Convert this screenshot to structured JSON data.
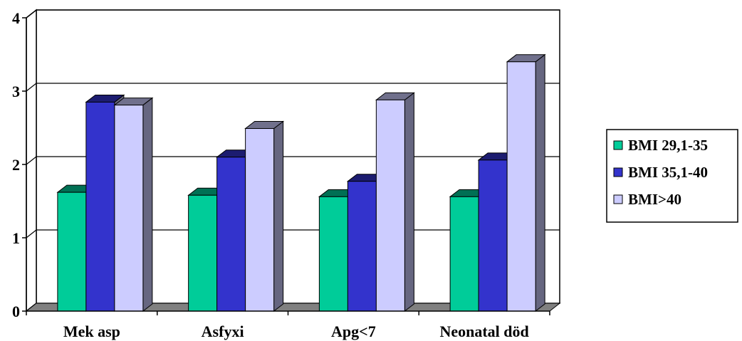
{
  "chart_data": {
    "type": "bar",
    "categories": [
      "Mek asp",
      "Asfyxi",
      "Apg<7",
      "Neonatal död"
    ],
    "series": [
      {
        "name": "BMI 29,1-35",
        "values": [
          1.62,
          1.58,
          1.56,
          1.56
        ],
        "color": "#00CC99"
      },
      {
        "name": "BMI 35,1-40",
        "values": [
          2.85,
          2.1,
          1.77,
          2.06
        ],
        "color": "#3333CC"
      },
      {
        "name": "BMI>40",
        "values": [
          2.81,
          2.49,
          2.88,
          3.4
        ],
        "color": "#CCCCFF"
      }
    ],
    "yticks": [
      "0",
      "1",
      "2",
      "3",
      "4"
    ],
    "ylim": [
      0,
      4
    ],
    "grid": true,
    "style": "3d-clustered-bar",
    "legend_position": "right"
  }
}
